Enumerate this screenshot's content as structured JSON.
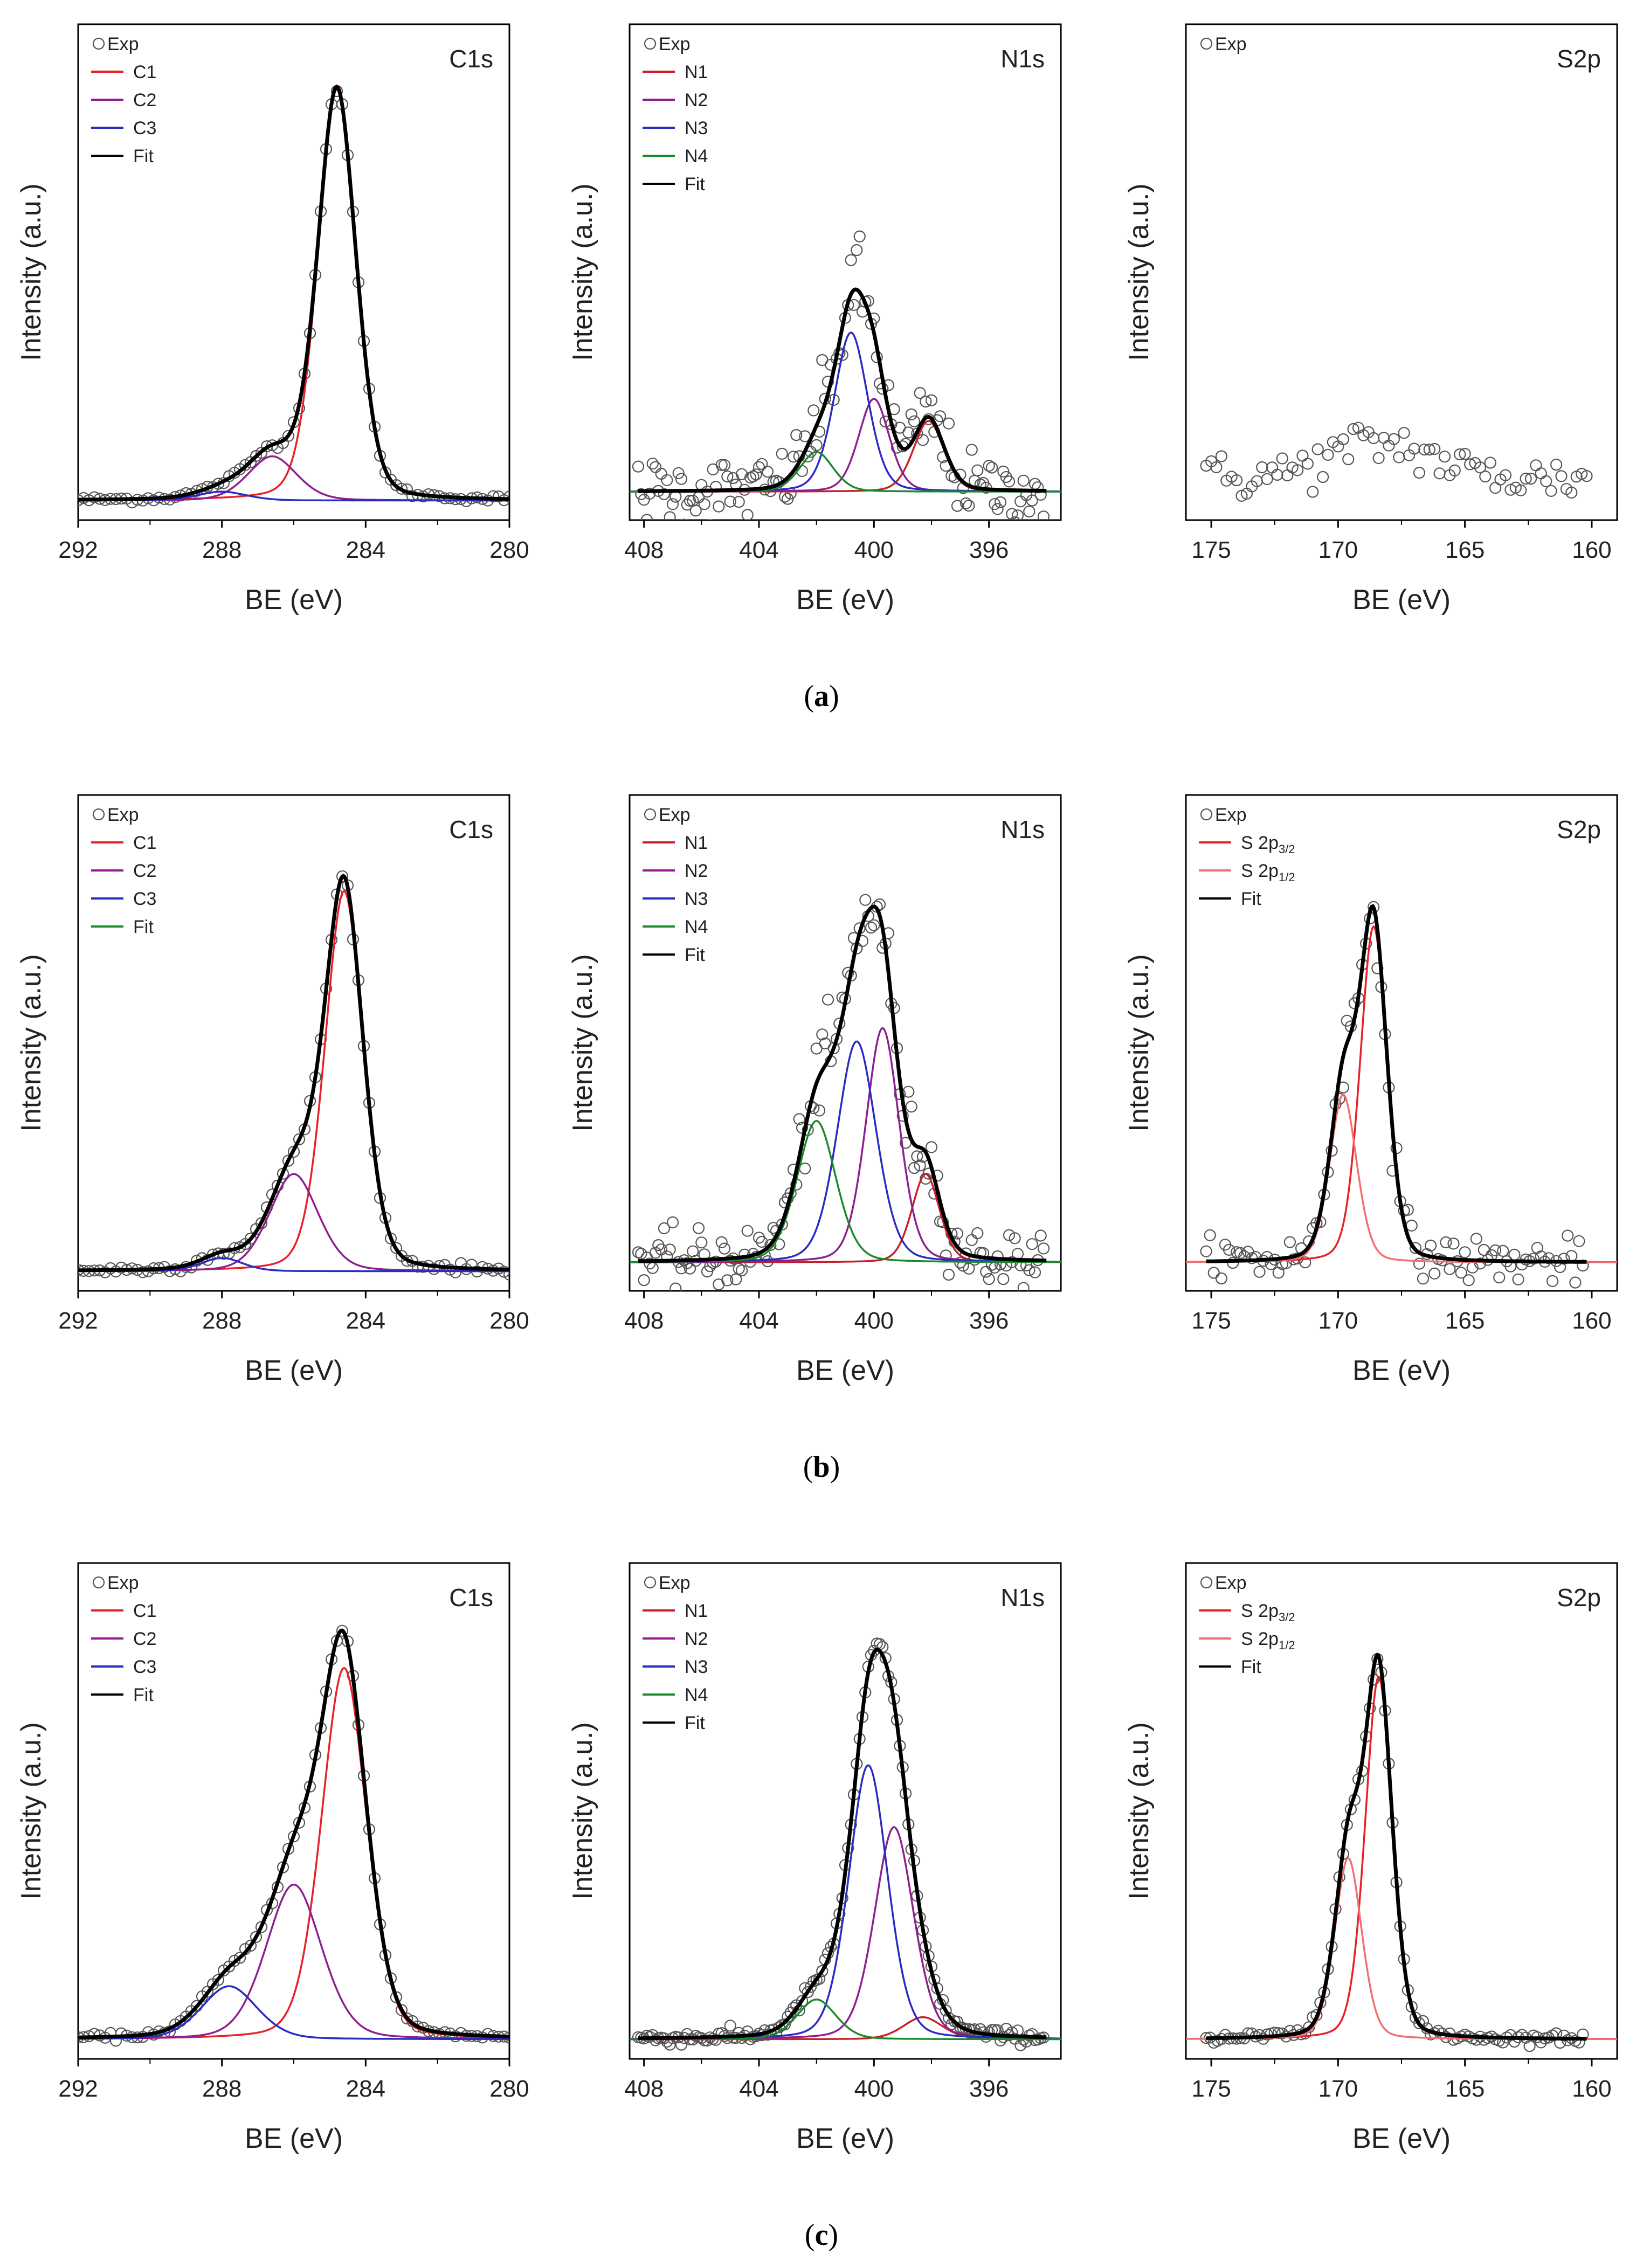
{
  "figure": {
    "captions": [
      "a",
      "b",
      "c"
    ],
    "x_axis_title": "BE (eV)",
    "y_axis_title": "Intensity (a.u.)"
  },
  "colors": {
    "exp": "#555555",
    "fit": "#000000",
    "C1": "#e8202a",
    "C2": "#8e1f8e",
    "C3": "#2b2bc2",
    "N1": "#c8202a",
    "N2": "#8e1f8e",
    "N3": "#2b2bc2",
    "N4": "#1a8a2a",
    "S2p32": "#e8202a",
    "S2p12": "#f07070"
  },
  "chart_data": [
    {
      "id": "a-C1s",
      "row": "a",
      "type": "line",
      "title": "C1s",
      "xlabel": "BE (eV)",
      "ylabel": "Intensity (a.u.)",
      "xlim": [
        292,
        280
      ],
      "xticks": [
        292,
        288,
        284,
        280
      ],
      "baseline": 0.02,
      "noise": 0.006,
      "exp_step": 0.15,
      "exp_range": [
        292,
        280
      ],
      "series": [
        {
          "name": "C1",
          "color_key": "C1",
          "center": 284.8,
          "amp": 0.93,
          "width": 0.55
        },
        {
          "name": "C2",
          "color_key": "C2",
          "center": 286.6,
          "amp": 0.1,
          "width": 0.7
        },
        {
          "name": "C3",
          "color_key": "C3",
          "center": 288.0,
          "amp": 0.02,
          "width": 0.7
        }
      ],
      "legend": [
        {
          "label": "Exp",
          "marker": "circle",
          "color_key": "exp"
        },
        {
          "label": "C1",
          "marker": "line",
          "color_key": "C1"
        },
        {
          "label": "C2",
          "marker": "line",
          "color_key": "C2"
        },
        {
          "label": "C3",
          "marker": "line",
          "color_key": "C3"
        },
        {
          "label": "Fit",
          "marker": "line",
          "color_key": "fit"
        }
      ]
    },
    {
      "id": "a-N1s",
      "row": "a",
      "type": "line",
      "title": "N1s",
      "xlabel": "BE (eV)",
      "ylabel": "Intensity (a.u.)",
      "xlim": [
        408.5,
        393.5
      ],
      "xticks": [
        408,
        404,
        400,
        396
      ],
      "baseline": 0.04,
      "noise": 0.06,
      "exp_step": 0.1,
      "exp_range": [
        408.2,
        394
      ],
      "series": [
        {
          "name": "N1",
          "color_key": "N1",
          "center": 398.1,
          "amp": 0.16,
          "width": 0.55
        },
        {
          "name": "N2",
          "color_key": "N2",
          "center": 400.0,
          "amp": 0.21,
          "width": 0.55
        },
        {
          "name": "N3",
          "color_key": "N3",
          "center": 400.8,
          "amp": 0.36,
          "width": 0.6
        },
        {
          "name": "N4",
          "color_key": "N4",
          "center": 402.0,
          "amp": 0.09,
          "width": 0.6
        }
      ],
      "legend": [
        {
          "label": "Exp",
          "marker": "circle",
          "color_key": "exp"
        },
        {
          "label": "N1",
          "marker": "line",
          "color_key": "N1"
        },
        {
          "label": "N2",
          "marker": "line",
          "color_key": "N2"
        },
        {
          "label": "N3",
          "marker": "line",
          "color_key": "N3"
        },
        {
          "label": "N4",
          "marker": "line",
          "color_key": "N4"
        },
        {
          "label": "Fit",
          "marker": "line",
          "color_key": "fit"
        }
      ]
    },
    {
      "id": "a-S2p",
      "row": "a",
      "type": "scatter",
      "title": "S2p",
      "xlabel": "BE (eV)",
      "ylabel": "Intensity (a.u.)",
      "xlim": [
        176,
        159
      ],
      "xticks": [
        175,
        170,
        165,
        160
      ],
      "baseline": 0.07,
      "noise": 0.04,
      "exp_step": 0.2,
      "exp_range": [
        175.2,
        160.2
      ],
      "hump": {
        "center": 168.3,
        "amp": 0.08,
        "width": 2.0
      },
      "show_fit": false,
      "series": [],
      "legend": [
        {
          "label": "Exp",
          "marker": "circle",
          "color_key": "exp"
        }
      ]
    },
    {
      "id": "b-C1s",
      "row": "b",
      "type": "line",
      "title": "C1s",
      "xlabel": "BE (eV)",
      "ylabel": "Intensity (a.u.)",
      "xlim": [
        292,
        280
      ],
      "xticks": [
        292,
        288,
        284,
        280
      ],
      "baseline": 0.02,
      "noise": 0.008,
      "exp_step": 0.15,
      "exp_range": [
        292,
        280
      ],
      "series": [
        {
          "name": "C1",
          "color_key": "C1",
          "center": 284.6,
          "amp": 0.86,
          "width": 0.55
        },
        {
          "name": "C2",
          "color_key": "C2",
          "center": 286.0,
          "amp": 0.22,
          "width": 0.7
        },
        {
          "name": "C3",
          "color_key": "C3",
          "center": 288.0,
          "amp": 0.03,
          "width": 0.6
        }
      ],
      "legend": [
        {
          "label": "Exp",
          "marker": "circle",
          "color_key": "exp"
        },
        {
          "label": "C1",
          "marker": "line",
          "color_key": "C1"
        },
        {
          "label": "C2",
          "marker": "line",
          "color_key": "C2"
        },
        {
          "label": "C3",
          "marker": "line",
          "color_key": "C3"
        },
        {
          "label": "Fit",
          "marker": "line",
          "color_key": "N4"
        }
      ]
    },
    {
      "id": "b-N1s",
      "row": "b",
      "type": "line",
      "title": "N1s",
      "xlabel": "BE (eV)",
      "ylabel": "Intensity (a.u.)",
      "xlim": [
        408.5,
        393.5
      ],
      "xticks": [
        408,
        404,
        400,
        396
      ],
      "baseline": 0.04,
      "noise": 0.05,
      "exp_step": 0.1,
      "exp_range": [
        408.2,
        394
      ],
      "series": [
        {
          "name": "N1",
          "color_key": "N1",
          "center": 398.2,
          "amp": 0.2,
          "width": 0.5
        },
        {
          "name": "N2",
          "color_key": "N2",
          "center": 399.7,
          "amp": 0.53,
          "width": 0.6
        },
        {
          "name": "N3",
          "color_key": "N3",
          "center": 400.6,
          "amp": 0.5,
          "width": 0.7
        },
        {
          "name": "N4",
          "color_key": "N4",
          "center": 402.0,
          "amp": 0.32,
          "width": 0.7
        }
      ],
      "legend": [
        {
          "label": "Exp",
          "marker": "circle",
          "color_key": "exp"
        },
        {
          "label": "N1",
          "marker": "line",
          "color_key": "N1"
        },
        {
          "label": "N2",
          "marker": "line",
          "color_key": "N2"
        },
        {
          "label": "N3",
          "marker": "line",
          "color_key": "N3"
        },
        {
          "label": "N4",
          "marker": "line",
          "color_key": "N4"
        },
        {
          "label": "Fit",
          "marker": "line",
          "color_key": "fit"
        }
      ]
    },
    {
      "id": "b-S2p",
      "row": "b",
      "type": "line",
      "title": "S2p",
      "xlabel": "BE (eV)",
      "ylabel": "Intensity (a.u.)",
      "xlim": [
        176,
        159
      ],
      "xticks": [
        175,
        170,
        165,
        160
      ],
      "baseline": 0.04,
      "noise": 0.04,
      "exp_step": 0.15,
      "exp_range": [
        175.2,
        160.2
      ],
      "series": [
        {
          "name": "S 2p3/2",
          "color_key": "S2p32",
          "center": 168.6,
          "amp": 0.76,
          "width": 0.55
        },
        {
          "name": "S 2p1/2",
          "color_key": "S2p12",
          "center": 169.8,
          "amp": 0.38,
          "width": 0.55
        }
      ],
      "legend": [
        {
          "label": "Exp",
          "marker": "circle",
          "color_key": "exp"
        },
        {
          "label": "S 2p",
          "sub": "3/2",
          "marker": "line",
          "color_key": "S2p32"
        },
        {
          "label": "S 2p",
          "sub": "1/2",
          "marker": "line",
          "color_key": "S2p12"
        },
        {
          "label": "Fit",
          "marker": "line",
          "color_key": "fit"
        }
      ]
    },
    {
      "id": "c-C1s",
      "row": "c",
      "type": "line",
      "title": "C1s",
      "xlabel": "BE (eV)",
      "ylabel": "Intensity (a.u.)",
      "xlim": [
        292,
        280
      ],
      "xticks": [
        292,
        288,
        284,
        280
      ],
      "baseline": 0.02,
      "noise": 0.006,
      "exp_step": 0.15,
      "exp_range": [
        292,
        280
      ],
      "series": [
        {
          "name": "C1",
          "color_key": "C1",
          "center": 284.6,
          "amp": 0.84,
          "width": 0.65
        },
        {
          "name": "C2",
          "color_key": "C2",
          "center": 286.0,
          "amp": 0.35,
          "width": 0.8
        },
        {
          "name": "C3",
          "color_key": "C3",
          "center": 287.8,
          "amp": 0.12,
          "width": 0.8
        }
      ],
      "legend": [
        {
          "label": "Exp",
          "marker": "circle",
          "color_key": "exp"
        },
        {
          "label": "C1",
          "marker": "line",
          "color_key": "C1"
        },
        {
          "label": "C2",
          "marker": "line",
          "color_key": "C2"
        },
        {
          "label": "C3",
          "marker": "line",
          "color_key": "C3"
        },
        {
          "label": "Fit",
          "marker": "line",
          "color_key": "fit"
        }
      ]
    },
    {
      "id": "c-N1s",
      "row": "c",
      "type": "line",
      "title": "N1s",
      "xlabel": "BE (eV)",
      "ylabel": "Intensity (a.u.)",
      "xlim": [
        408.5,
        393.5
      ],
      "xticks": [
        408,
        404,
        400,
        396
      ],
      "baseline": 0.02,
      "noise": 0.012,
      "exp_step": 0.1,
      "exp_range": [
        408.2,
        394
      ],
      "series": [
        {
          "name": "N1",
          "color_key": "N1",
          "center": 398.3,
          "amp": 0.05,
          "width": 0.7
        },
        {
          "name": "N2",
          "color_key": "N2",
          "center": 399.3,
          "amp": 0.48,
          "width": 0.7
        },
        {
          "name": "N3",
          "color_key": "N3",
          "center": 400.2,
          "amp": 0.62,
          "width": 0.7
        },
        {
          "name": "N4",
          "color_key": "N4",
          "center": 402.0,
          "amp": 0.09,
          "width": 0.7
        }
      ],
      "legend": [
        {
          "label": "Exp",
          "marker": "circle",
          "color_key": "exp"
        },
        {
          "label": "N1",
          "marker": "line",
          "color_key": "N1"
        },
        {
          "label": "N2",
          "marker": "line",
          "color_key": "N2"
        },
        {
          "label": "N3",
          "marker": "line",
          "color_key": "N3"
        },
        {
          "label": "N4",
          "marker": "line",
          "color_key": "N4"
        },
        {
          "label": "Fit",
          "marker": "line",
          "color_key": "fit"
        }
      ]
    },
    {
      "id": "c-S2p",
      "row": "c",
      "type": "line",
      "title": "S2p",
      "xlabel": "BE (eV)",
      "ylabel": "Intensity (a.u.)",
      "xlim": [
        176,
        159
      ],
      "xticks": [
        175,
        170,
        165,
        160
      ],
      "baseline": 0.02,
      "noise": 0.01,
      "exp_step": 0.15,
      "exp_range": [
        175.2,
        160.2
      ],
      "series": [
        {
          "name": "S 2p3/2",
          "color_key": "S2p32",
          "center": 168.4,
          "amp": 0.82,
          "width": 0.55
        },
        {
          "name": "S 2p1/2",
          "color_key": "S2p12",
          "center": 169.6,
          "amp": 0.41,
          "width": 0.55
        }
      ],
      "legend": [
        {
          "label": "Exp",
          "marker": "circle",
          "color_key": "exp"
        },
        {
          "label": "S 2p",
          "sub": "3/2",
          "marker": "line",
          "color_key": "S2p32"
        },
        {
          "label": "S 2p",
          "sub": "1/2",
          "marker": "line",
          "color_key": "S2p12"
        },
        {
          "label": "Fit",
          "marker": "line",
          "color_key": "fit"
        }
      ]
    }
  ]
}
